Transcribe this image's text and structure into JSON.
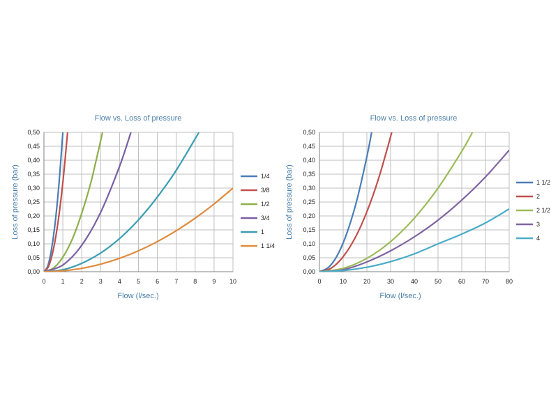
{
  "chart_data": [
    {
      "type": "line",
      "title": "Flow vs. Loss of  pressure",
      "xlabel": "Flow (l/sec.)",
      "ylabel": "Loss of  pressure  (bar)",
      "xlim": [
        0,
        10
      ],
      "ylim": [
        0,
        0.5
      ],
      "x_ticks": [
        "0",
        "1",
        "2",
        "3",
        "4",
        "5",
        "6",
        "7",
        "8",
        "9",
        "10"
      ],
      "y_ticks": [
        "0,00",
        "0,05",
        "0,10",
        "0,15",
        "0,20",
        "0,25",
        "0,30",
        "0,35",
        "0,40",
        "0,45",
        "0,50"
      ],
      "grid": true,
      "legend_position": "right",
      "series": [
        {
          "name": "1/4",
          "color": "#4a7eb5",
          "x": [
            0,
            0.2,
            0.4,
            0.6,
            0.8,
            1.0
          ],
          "y": [
            0,
            0.02,
            0.08,
            0.18,
            0.32,
            0.5
          ]
        },
        {
          "name": "3/8",
          "color": "#c0504d",
          "x": [
            0,
            0.25,
            0.5,
            0.75,
            1.0,
            1.25
          ],
          "y": [
            0,
            0.02,
            0.08,
            0.18,
            0.32,
            0.5
          ]
        },
        {
          "name": "1/2",
          "color": "#8db04c",
          "x": [
            0,
            0.5,
            1.0,
            1.5,
            2.0,
            2.5,
            3.1
          ],
          "y": [
            0,
            0.013,
            0.052,
            0.117,
            0.21,
            0.325,
            0.5
          ]
        },
        {
          "name": "3/4",
          "color": "#7a5fa3",
          "x": [
            0,
            1,
            2,
            3,
            4,
            4.6
          ],
          "y": [
            0,
            0.024,
            0.095,
            0.213,
            0.378,
            0.5
          ]
        },
        {
          "name": "1",
          "color": "#3a9eb1",
          "x": [
            0,
            1,
            2,
            3,
            4,
            5,
            6,
            7,
            8.2
          ],
          "y": [
            0,
            0.007,
            0.03,
            0.067,
            0.119,
            0.186,
            0.268,
            0.364,
            0.5
          ]
        },
        {
          "name": "1 1/4",
          "color": "#e08b3d",
          "x": [
            0,
            1,
            2,
            3,
            4,
            5,
            6,
            7,
            8,
            9,
            10
          ],
          "y": [
            0,
            0.003,
            0.012,
            0.027,
            0.048,
            0.075,
            0.108,
            0.147,
            0.192,
            0.243,
            0.3
          ]
        }
      ]
    },
    {
      "type": "line",
      "title": "Flow vs. Loss of  pressure",
      "xlabel": "Flow (l/sec.)",
      "ylabel": "Loss of  pressure  (bar)",
      "xlim": [
        0,
        80
      ],
      "ylim": [
        0,
        0.5
      ],
      "x_ticks": [
        "0",
        "10",
        "20",
        "30",
        "40",
        "50",
        "60",
        "70",
        "80"
      ],
      "y_ticks": [
        "0,00",
        "0,05",
        "0,10",
        "0,15",
        "0,20",
        "0,25",
        "0,30",
        "0,35",
        "0,40",
        "0,45",
        "0,50"
      ],
      "grid": true,
      "legend_position": "right",
      "series": [
        {
          "name": "1 1/2",
          "color": "#4a7eb5",
          "x": [
            0,
            4,
            8,
            12,
            16,
            20,
            22
          ],
          "y": [
            0,
            0.017,
            0.066,
            0.149,
            0.264,
            0.413,
            0.5
          ]
        },
        {
          "name": "2",
          "color": "#c0504d",
          "x": [
            0,
            5,
            10,
            15,
            20,
            25,
            30.5
          ],
          "y": [
            0,
            0.013,
            0.054,
            0.121,
            0.215,
            0.336,
            0.5
          ]
        },
        {
          "name": "2 1/2",
          "color": "#9bbb59",
          "x": [
            0,
            10,
            20,
            30,
            40,
            50,
            60,
            64.5
          ],
          "y": [
            0,
            0.012,
            0.048,
            0.108,
            0.192,
            0.3,
            0.432,
            0.5
          ]
        },
        {
          "name": "3",
          "color": "#8064a2",
          "x": [
            0,
            10,
            20,
            30,
            40,
            50,
            60,
            70,
            80
          ],
          "y": [
            0,
            0.007,
            0.035,
            0.075,
            0.125,
            0.185,
            0.257,
            0.34,
            0.436
          ]
        },
        {
          "name": "4",
          "color": "#4bacc6",
          "x": [
            0,
            10,
            20,
            30,
            40,
            50,
            60,
            70,
            80
          ],
          "y": [
            0,
            0.004,
            0.016,
            0.036,
            0.064,
            0.1,
            0.135,
            0.175,
            0.225
          ]
        }
      ]
    }
  ]
}
